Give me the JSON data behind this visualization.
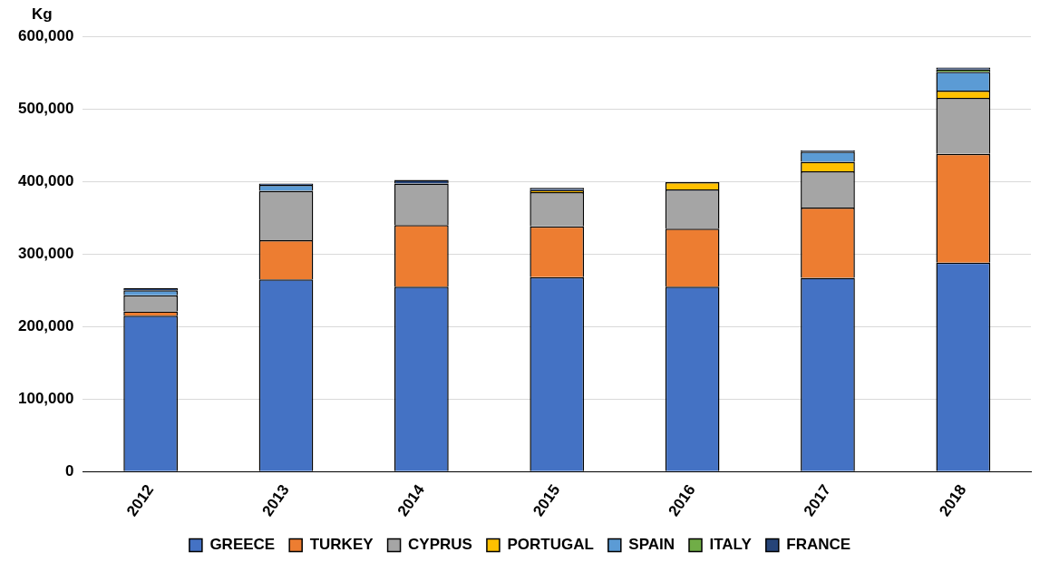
{
  "chart_data": {
    "type": "bar",
    "stacked": true,
    "ylabel": "Kg",
    "categories": [
      "2012",
      "2013",
      "2014",
      "2015",
      "2016",
      "2017",
      "2018"
    ],
    "series": [
      {
        "name": "GREECE",
        "color": "#4472c4",
        "values": [
          215000,
          265000,
          255000,
          268000,
          255000,
          267000,
          288000
        ]
      },
      {
        "name": "TURKEY",
        "color": "#ed7d31",
        "values": [
          6000,
          54000,
          85000,
          70000,
          80000,
          97000,
          150000
        ]
      },
      {
        "name": "CYPRUS",
        "color": "#a5a5a5",
        "values": [
          22000,
          68000,
          57000,
          47000,
          54000,
          50000,
          77000
        ]
      },
      {
        "name": "PORTUGAL",
        "color": "#ffc000",
        "values": [
          null,
          null,
          null,
          3000,
          10000,
          13000,
          10000
        ]
      },
      {
        "name": "SPAIN",
        "color": "#5b9bd5",
        "values": [
          7000,
          8000,
          null,
          null,
          null,
          14000,
          26000
        ]
      },
      {
        "name": "ITALY",
        "color": "#70ad47",
        "values": [
          null,
          null,
          null,
          null,
          null,
          null,
          3000
        ]
      },
      {
        "name": "FRANCE",
        "color": "#264478",
        "values": [
          3000,
          2000,
          5000,
          3000,
          null,
          2000,
          3000
        ]
      }
    ],
    "ylim": [
      0,
      600000
    ],
    "yticks": [
      0,
      {
        "value": 100000,
        "label": "100,000"
      },
      {
        "value": 200000,
        "label": "200,000"
      },
      {
        "value": 300000,
        "label": "300,000"
      },
      {
        "value": 400000,
        "label": "400,000"
      },
      {
        "value": 500000,
        "label": "500,000"
      },
      {
        "value": 600000,
        "label": "600,000"
      }
    ],
    "grid": "y",
    "legend": "bottom"
  }
}
